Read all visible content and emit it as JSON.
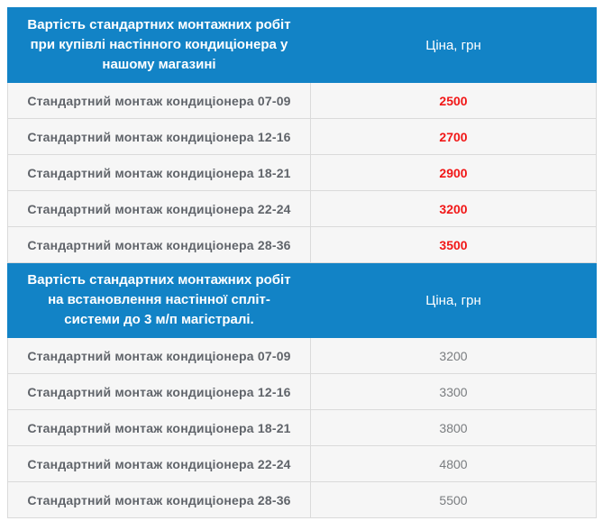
{
  "colors": {
    "header_bg": "#1283c6",
    "header_text": "#ffffff",
    "row_bg": "#f6f6f6",
    "row_border": "#dadada",
    "service_label_text": "#60646a",
    "price_highlight": "#f11717",
    "price_muted": "#7a7d80"
  },
  "table": {
    "sections": [
      {
        "header": {
          "title": "Вартість стандартних монтажних робіт при купівлі настінного кондиціонера у нашому магазині",
          "price_label": "Ціна, грн"
        },
        "rows": [
          {
            "label": "Стандартний монтаж кондиціонера 07-09",
            "price": "2500"
          },
          {
            "label": "Стандартний монтаж кондиціонера 12-16",
            "price": "2700"
          },
          {
            "label": "Стандартний монтаж кондиціонера 18-21",
            "price": "2900"
          },
          {
            "label": "Стандартний монтаж кондиціонера 22-24",
            "price": "3200"
          },
          {
            "label": "Стандартний монтаж кондиціонера 28-36",
            "price": "3500"
          }
        ]
      },
      {
        "header": {
          "title": "Вартість стандартних монтажних робіт на встановлення настінної спліт-системи до 3 м/п магістралі.",
          "price_label": "Ціна, грн"
        },
        "rows": [
          {
            "label": "Стандартний монтаж кондиціонера 07-09",
            "price": "3200"
          },
          {
            "label": "Стандартний монтаж кондиціонера 12-16",
            "price": "3300"
          },
          {
            "label": "Стандартний монтаж кондиціонера 18-21",
            "price": "3800"
          },
          {
            "label": "Стандартний монтаж кондиціонера 22-24",
            "price": "4800"
          },
          {
            "label": "Стандартний монтаж кондиціонера 28-36",
            "price": "5500"
          }
        ]
      }
    ]
  }
}
